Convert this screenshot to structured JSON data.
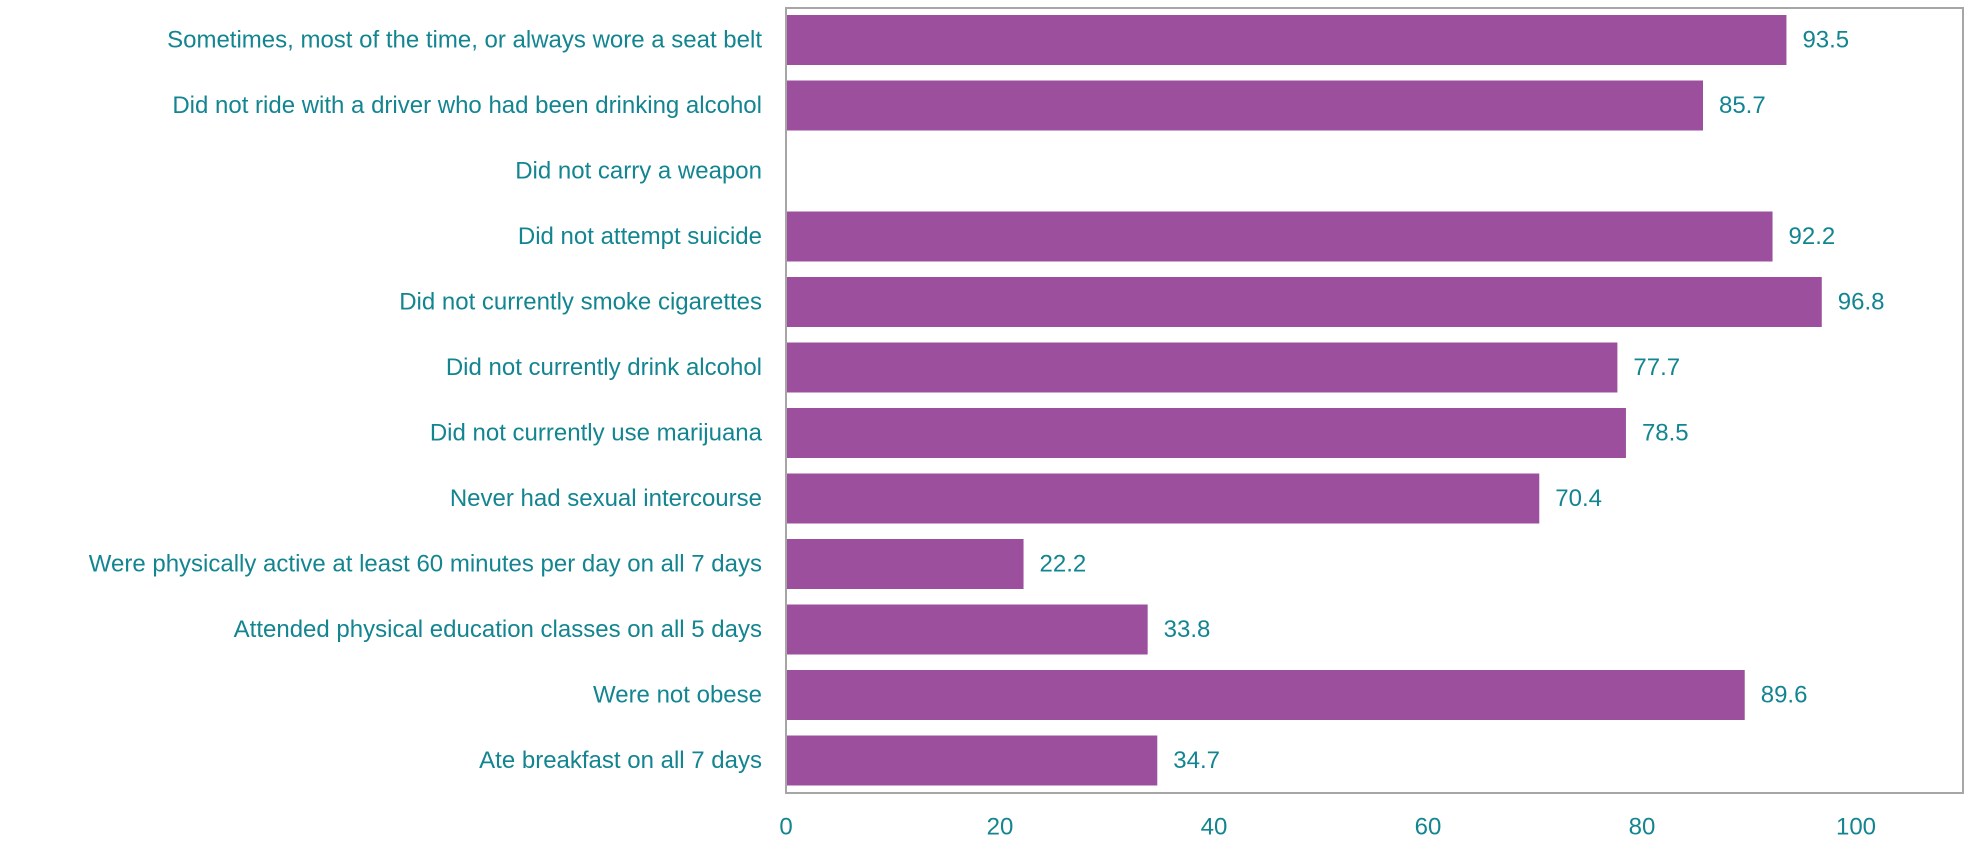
{
  "chart_data": {
    "type": "bar",
    "orientation": "horizontal",
    "categories": [
      "Sometimes, most of the time, or always wore a seat belt",
      "Did not ride with a driver who had been drinking alcohol",
      "Did not carry a weapon",
      "Did not attempt suicide",
      "Did not currently smoke cigarettes",
      "Did not currently drink alcohol",
      "Did not currently use marijuana",
      "Never had sexual intercourse",
      "Were physically active at least 60 minutes per day on all 7 days",
      "Attended physical education classes on all 5 days",
      "Were not obese",
      "Ate breakfast on all 7 days"
    ],
    "values": [
      93.5,
      85.7,
      null,
      92.2,
      96.8,
      77.7,
      78.5,
      70.4,
      22.2,
      33.8,
      89.6,
      34.7
    ],
    "value_labels": [
      "93.5",
      "85.7",
      "",
      "92.2",
      "96.8",
      "77.7",
      "78.5",
      "70.4",
      "22.2",
      "33.8",
      "89.6",
      "34.7"
    ],
    "x_ticks": [
      0,
      20,
      40,
      60,
      80,
      100
    ],
    "xlim": [
      0,
      110
    ],
    "grid": false,
    "legend": "none",
    "title": "",
    "xlabel": "",
    "ylabel": "",
    "colors": {
      "bar": "#9b4f9c",
      "text": "#138591",
      "frame": "#a6a6a6"
    }
  }
}
